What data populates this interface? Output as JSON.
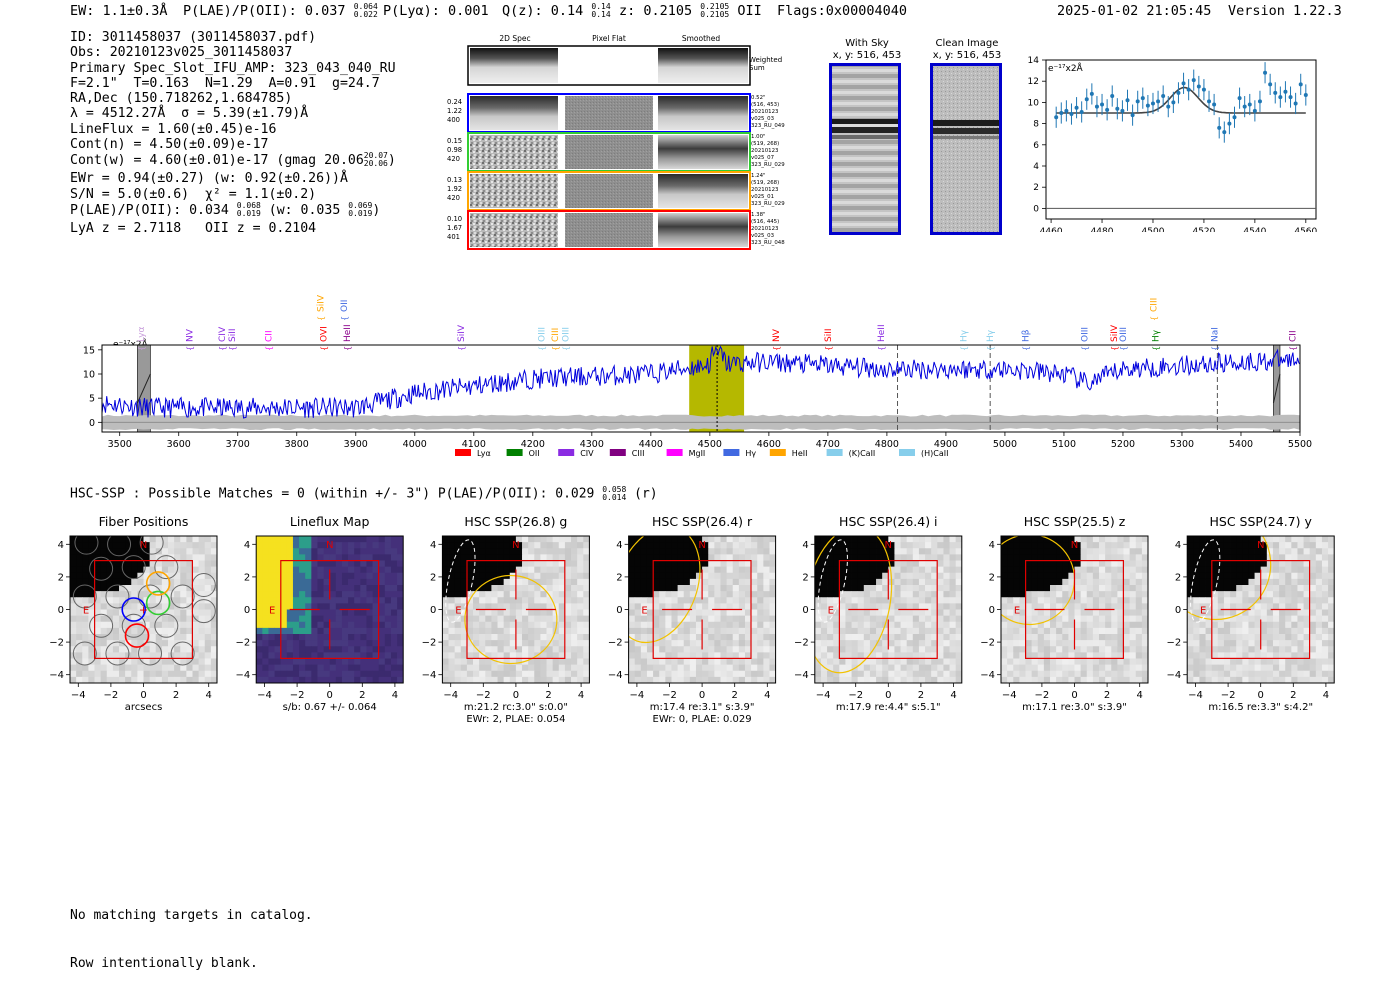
{
  "header": {
    "ew_text": "EW: 1.1±0.3Å",
    "plae_text": "P(LAE)/P(OII): 0.037",
    "plae_hi": "0.064",
    "plae_lo": "0.022",
    "plya_text": "P(Lyα): 0.001",
    "qz_text": "Q(z): 0.14",
    "qz_hi": "0.14",
    "qz_lo": "0.14",
    "z_text": "z: 0.2105",
    "z_hi": "0.2105",
    "z_lo": "0.2105",
    "z_line": "OII",
    "flags": "Flags:0x00004040",
    "timestamp": "2025-01-02 21:05:45",
    "version": "Version 1.22.3"
  },
  "info": {
    "id": "ID: 3011458037 (3011458037.pdf)",
    "obs": "Obs: 20210123v025_3011458037",
    "primary": "Primary Spec_Slot_IFU_AMP: 323_043_040_RU",
    "params": "F=2.1\"  T=0.163  N=1.29  A=0.91  g=24.7",
    "radec": "RA,Dec (150.718262,1.684785)",
    "lambda": "λ = 4512.27Å  σ = 5.39(±1.79)Å",
    "lineflux": "LineFlux = 1.60(±0.45)e-16",
    "contn": "Cont(n) = 4.50(±0.09)e-17",
    "contw": "Cont(w) = 4.60(±0.01)e-17 (gmag 20.06",
    "contw_hi": "20.07",
    "contw_lo": "20.06",
    "ewr": "EWr = 0.94(±0.27) (w: 0.92(±0.26))Å",
    "sn": "S/N = 5.0(±0.6)  χ² = 1.1(±0.2)",
    "plae": "P(LAE)/P(OII): 0.034",
    "plae_hi": "0.068",
    "plae_lo": "0.019",
    "plae_w": "(w: 0.035",
    "plae_w_hi": "0.069",
    "plae_w_lo": "0.019",
    "lya_z": "LyA z = 2.7118   OII z = 0.2104"
  },
  "cutouts": {
    "col_titles": [
      "2D Spec",
      "Pixel Flat",
      "Smoothed"
    ],
    "weighted_sum": "Weighted\nSum",
    "rows": [
      {
        "left": [
          "0.24",
          "1.22",
          "400"
        ],
        "right": [
          "0.52\"",
          "(516, 453)",
          "20210123",
          "v025_03",
          "323_RU_049"
        ],
        "color": "#0000ff"
      },
      {
        "left": [
          "0.15",
          "0.98",
          "420"
        ],
        "right": [
          "1.00\"",
          "(519, 268)",
          "20210123",
          "v025_07",
          "323_RU_029"
        ],
        "color": "#32cd32"
      },
      {
        "left": [
          "0.13",
          "1.92",
          "420"
        ],
        "right": [
          "1.24\"",
          "(519, 268)",
          "20210123",
          "v025_01",
          "323_RU_029"
        ],
        "color": "#ffa500"
      },
      {
        "left": [
          "0.10",
          "1.67",
          "401"
        ],
        "right": [
          "1.38\"",
          "(516, 445)",
          "20210123",
          "v025_03",
          "323_RU_048"
        ],
        "color": "#ff0000"
      }
    ],
    "with_sky_title": "With Sky",
    "with_sky_xy": "x, y: 516, 453",
    "clean_title": "Clean Image",
    "clean_xy": "x, y: 516, 453"
  },
  "zoom_fit": {
    "type": "scatter",
    "units_label": "e⁻¹⁷x2Å",
    "xlim": [
      4458,
      4564
    ],
    "ylim": [
      -1,
      14
    ],
    "xticks": [
      4460,
      4480,
      4500,
      4520,
      4540,
      4560
    ],
    "yticks": [
      0,
      2,
      4,
      6,
      8,
      10,
      12,
      14
    ],
    "x": [
      4462,
      4464,
      4466,
      4468,
      4470,
      4472,
      4474,
      4476,
      4478,
      4480,
      4482,
      4484,
      4486,
      4488,
      4490,
      4492,
      4494,
      4496,
      4498,
      4500,
      4502,
      4504,
      4506,
      4508,
      4510,
      4512,
      4514,
      4516,
      4518,
      4520,
      4522,
      4524,
      4526,
      4528,
      4530,
      4532,
      4534,
      4536,
      4538,
      4540,
      4542,
      4544,
      4546,
      4548,
      4550,
      4552,
      4554,
      4556,
      4558,
      4560
    ],
    "y": [
      8.6,
      9.0,
      9.2,
      8.9,
      9.5,
      9.1,
      10.3,
      10.8,
      9.6,
      9.8,
      9.3,
      10.6,
      9.4,
      9.2,
      10.2,
      8.8,
      10.1,
      10.4,
      9.7,
      9.9,
      10.1,
      10.6,
      9.6,
      10.0,
      10.9,
      11.8,
      11.2,
      12.1,
      11.5,
      11.2,
      10.1,
      9.8,
      7.6,
      7.2,
      8.0,
      8.6,
      10.4,
      9.6,
      9.8,
      9.2,
      10.1,
      12.8,
      11.7,
      10.9,
      10.5,
      11.0,
      10.5,
      9.9,
      11.7,
      10.7
    ],
    "yerr": 1.0,
    "fit": {
      "continuum": 9.0,
      "amplitude": 2.4,
      "center": 4512.27,
      "sigma": 5.39
    }
  },
  "spectrum": {
    "type": "line",
    "units_label": "e⁻¹⁷x2Å",
    "xlim": [
      3470,
      5500
    ],
    "ylim": [
      -2,
      16
    ],
    "xticks": [
      3500,
      3600,
      3700,
      3800,
      3900,
      4000,
      4100,
      4200,
      4300,
      4400,
      4500,
      4600,
      4700,
      4800,
      4900,
      5000,
      5100,
      5200,
      5300,
      5400,
      5500
    ],
    "yticks": [
      0,
      5,
      10,
      15
    ],
    "trend_x": [
      3470,
      3550,
      3700,
      3900,
      4000,
      4200,
      4400,
      4500,
      4600,
      4800,
      5000,
      5100,
      5140,
      5200,
      5400,
      5500
    ],
    "trend_y": [
      4,
      3,
      3,
      3,
      6,
      9,
      10,
      12,
      12.5,
      11,
      11,
      10,
      8,
      11,
      12.5,
      13
    ],
    "highlight_band": [
      4465,
      4558
    ],
    "emission_line": 4512.27,
    "dashed_lines": [
      4818,
      4975,
      5360
    ],
    "masked_bands": [
      [
        3530,
        3552
      ],
      [
        5455,
        5466
      ]
    ],
    "lines": [
      {
        "label": "Lyα",
        "x": 3536,
        "color": "#c9a0dc",
        "level": 1
      },
      {
        "label": "NV",
        "x": 3618,
        "color": "#8a2be2",
        "level": 1
      },
      {
        "label": "CIV",
        "x": 3673,
        "color": "#8a2be2",
        "level": 1
      },
      {
        "label": "SiII",
        "x": 3690,
        "color": "#8a2be2",
        "level": 1
      },
      {
        "label": "CII",
        "x": 3752,
        "color": "#ff00ff",
        "level": 1
      },
      {
        "label": "SiIV",
        "x": 3840,
        "color": "#ffa500",
        "level": 2
      },
      {
        "label": "OVI",
        "x": 3845,
        "color": "#ff0000",
        "level": 1
      },
      {
        "label": "OII",
        "x": 3880,
        "color": "#4169e1",
        "level": 2
      },
      {
        "label": "HeII",
        "x": 3885,
        "color": "#8b008b",
        "level": 1
      },
      {
        "label": "SiIV",
        "x": 4078,
        "color": "#8a2be2",
        "level": 1
      },
      {
        "label": "OIII",
        "x": 4215,
        "color": "#87ceeb",
        "level": 1
      },
      {
        "label": "CIII",
        "x": 4238,
        "color": "#ffa500",
        "level": 1
      },
      {
        "label": "OIII",
        "x": 4255,
        "color": "#87ceeb",
        "level": 1
      },
      {
        "label": "NV",
        "x": 4612,
        "color": "#ff0000",
        "level": 1
      },
      {
        "label": "SiII",
        "x": 4700,
        "color": "#ff0000",
        "level": 1
      },
      {
        "label": "HeII",
        "x": 4790,
        "color": "#8a2be2",
        "level": 1
      },
      {
        "label": "Hγ",
        "x": 4930,
        "color": "#87ceeb",
        "level": 1
      },
      {
        "label": "Hγ",
        "x": 4975,
        "color": "#87ceeb",
        "level": 1
      },
      {
        "label": "Hβ",
        "x": 5035,
        "color": "#4169e1",
        "level": 1
      },
      {
        "label": "OIII",
        "x": 5135,
        "color": "#4169e1",
        "level": 1
      },
      {
        "label": "SiIV",
        "x": 5185,
        "color": "#ff0000",
        "level": 1
      },
      {
        "label": "OIII",
        "x": 5200,
        "color": "#4169e1",
        "level": 1
      },
      {
        "label": "CIII",
        "x": 5252,
        "color": "#ffa500",
        "level": 2
      },
      {
        "label": "Hγ",
        "x": 5255,
        "color": "#008000",
        "level": 1
      },
      {
        "label": "NaI",
        "x": 5355,
        "color": "#4169e1",
        "level": 1
      },
      {
        "label": "CII",
        "x": 5487,
        "color": "#8b008b",
        "level": 1
      }
    ],
    "legend": [
      {
        "label": "Lyα",
        "color": "#ff0000"
      },
      {
        "label": "OII",
        "color": "#008000"
      },
      {
        "label": "CIV",
        "color": "#8a2be2"
      },
      {
        "label": "CIII",
        "color": "#800080"
      },
      {
        "label": "MgII",
        "color": "#ff00ff"
      },
      {
        "label": "Hγ",
        "color": "#4169e1"
      },
      {
        "label": "HeII",
        "color": "#ffa500"
      },
      {
        "label": "(K)CaII",
        "color": "#87ceeb"
      },
      {
        "label": "(H)CaII",
        "color": "#87ceeb"
      }
    ]
  },
  "hsc": {
    "headline": "HSC-SSP : Possible Matches = 0 (within +/- 3\")  P(LAE)/P(OII): 0.029",
    "headline_hi": "0.058",
    "headline_lo": "0.014",
    "headline_band": "(r)"
  },
  "stamps": [
    {
      "title": "Fiber Positions",
      "xlabel": "arcsecs",
      "sub": "",
      "kind": "fiber"
    },
    {
      "title": "Lineflux Map",
      "xlabel": "s/b: 0.67 +/- 0.064",
      "sub": "",
      "kind": "lineflux"
    },
    {
      "title": "HSC SSP(26.8) g",
      "xlabel": "m:21.2 rc:3.0\"  s:0.0\"",
      "sub": "EWr: 2, PLAE: 0.054",
      "kind": "g"
    },
    {
      "title": "HSC SSP(26.4) r",
      "xlabel": "m:17.4  re:3.1\"  s:3.9\"",
      "sub": "EWr: 0, PLAE: 0.029",
      "kind": "r"
    },
    {
      "title": "HSC SSP(26.4) i",
      "xlabel": "m:17.9  re:4.4\"  s:5.1\"",
      "sub": "",
      "kind": "i"
    },
    {
      "title": "HSC SSP(25.5) z",
      "xlabel": "m:17.1  re:3.0\"  s:3.9\"",
      "sub": "",
      "kind": "z"
    },
    {
      "title": "HSC SSP(24.7) y",
      "xlabel": "m:16.5  re:3.3\"  s:4.2\"",
      "sub": "",
      "kind": "y"
    }
  ],
  "stamp_axes": {
    "ticks": [
      -4,
      -2,
      0,
      2,
      4
    ],
    "north": "N",
    "east": "E"
  },
  "footer": {
    "line1": "No matching targets in catalog.",
    "line2": "Row intentionally blank."
  }
}
